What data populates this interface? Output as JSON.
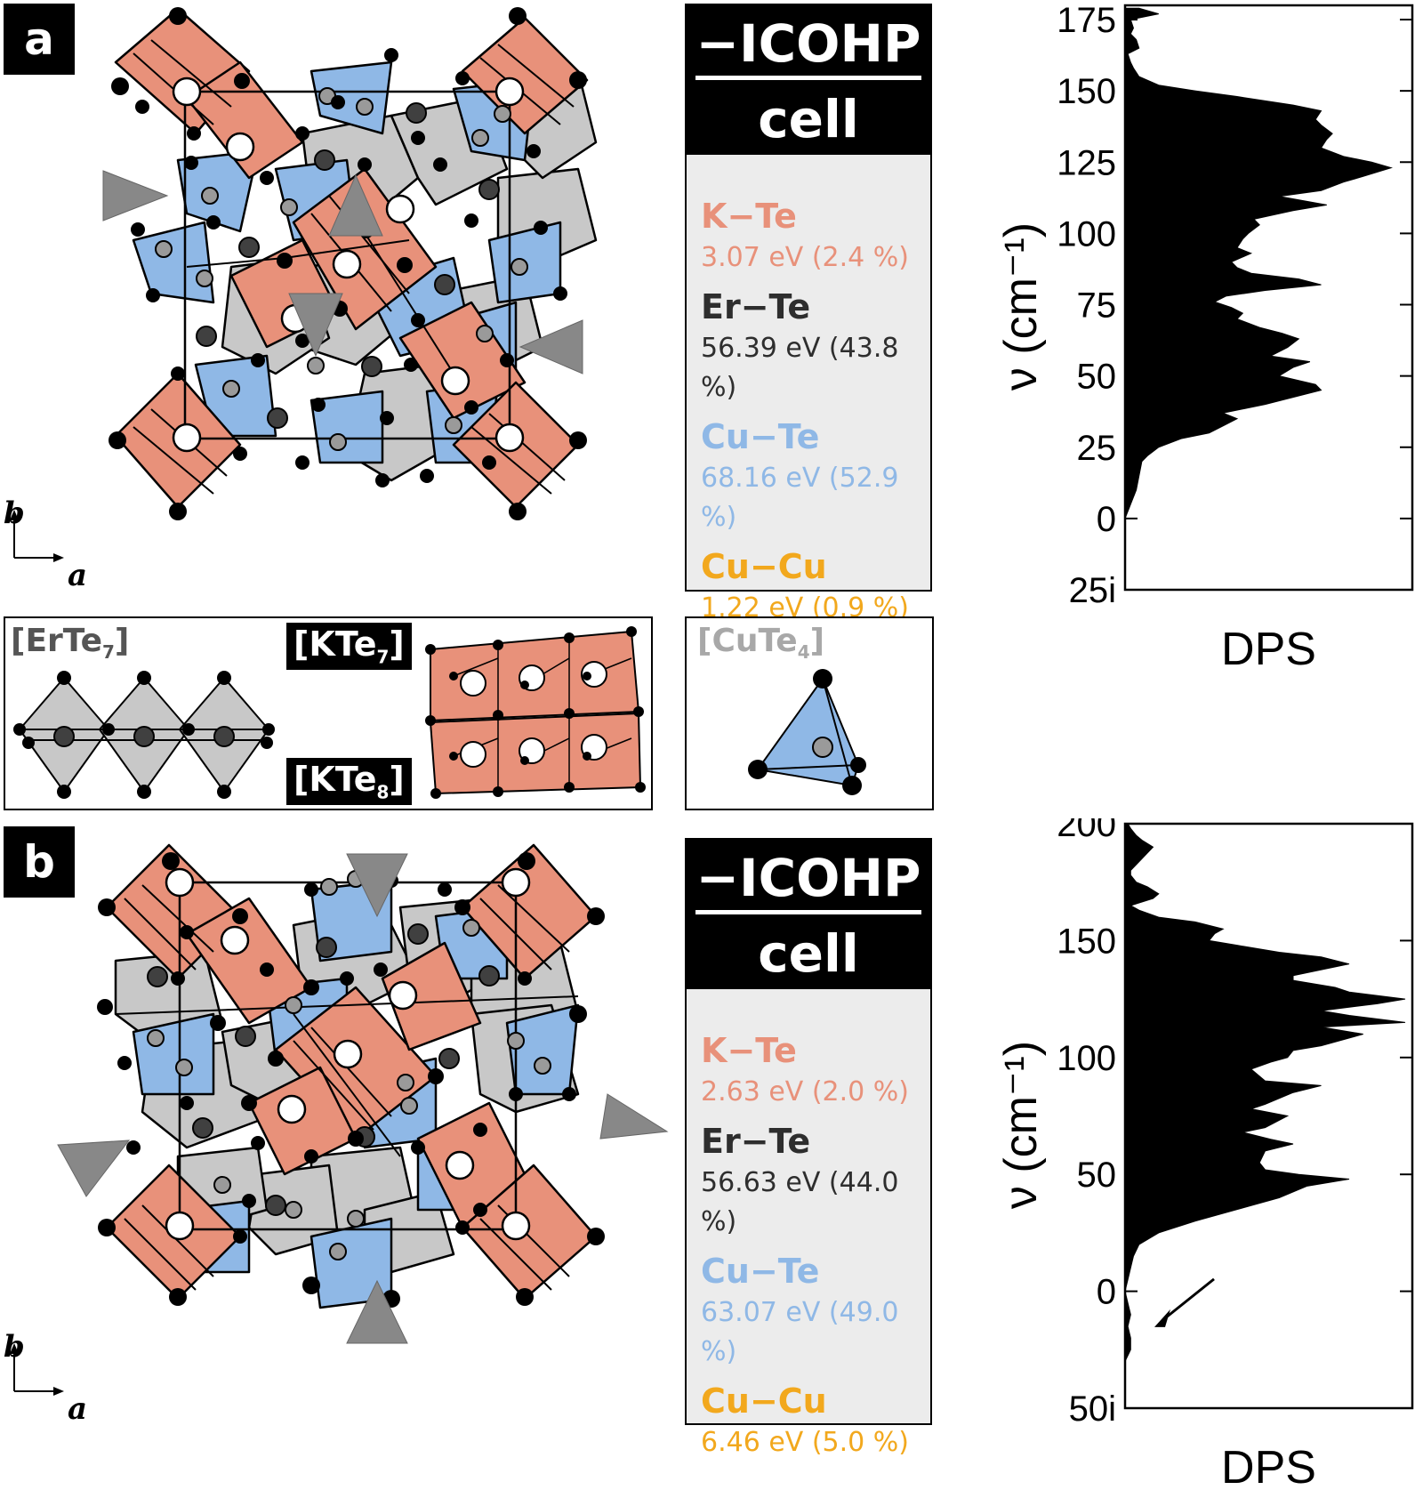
{
  "panels": {
    "a": {
      "letter": "a",
      "icohp_title": "−ICOHP",
      "icohp_sub": "cell",
      "bonds": [
        {
          "name": "K−Te",
          "value": "3.07 eV (2.4 %)",
          "color": "#e8917a"
        },
        {
          "name": "Er−Te",
          "value": "56.39 eV (43.8 %)",
          "color": "#2e2e2e"
        },
        {
          "name": "Cu−Te",
          "value": "68.16 eV (52.9 %)",
          "color": "#8fb8e6"
        },
        {
          "name": "Cu−Cu",
          "value": "1.22 eV (0.9 %)",
          "color": "#f2a81d"
        }
      ],
      "axis_b": "b",
      "axis_a": "a",
      "chart_data": {
        "type": "area",
        "xlabel": "DPS",
        "ylabel": "ν (cm⁻¹)",
        "ylim_label_bottom": "25i",
        "yticks": [
          "175",
          "150",
          "125",
          "100",
          "75",
          "50",
          "25",
          "0"
        ],
        "ytick_values": [
          175,
          150,
          125,
          100,
          75,
          50,
          25,
          0
        ],
        "ylim": [
          -25,
          180
        ],
        "x": [
          -25,
          0,
          5,
          10,
          15,
          20,
          22,
          25,
          28,
          30,
          33,
          35,
          37,
          40,
          43,
          45,
          47,
          50,
          53,
          55,
          57,
          60,
          63,
          65,
          67,
          70,
          72,
          74,
          76,
          78,
          80,
          82,
          84,
          86,
          88,
          90,
          93,
          95,
          98,
          100,
          103,
          105,
          108,
          110,
          113,
          115,
          118,
          120,
          123,
          125,
          127,
          130,
          133,
          135,
          138,
          140,
          143,
          145,
          148,
          150,
          152,
          155,
          158,
          160,
          163,
          165,
          168,
          170,
          172,
          175,
          177,
          179
        ],
        "y": [
          0,
          0,
          0.02,
          0.04,
          0.05,
          0.06,
          0.08,
          0.12,
          0.2,
          0.3,
          0.36,
          0.4,
          0.35,
          0.5,
          0.62,
          0.7,
          0.68,
          0.55,
          0.6,
          0.66,
          0.52,
          0.58,
          0.62,
          0.56,
          0.48,
          0.4,
          0.42,
          0.38,
          0.32,
          0.36,
          0.5,
          0.7,
          0.62,
          0.45,
          0.4,
          0.38,
          0.45,
          0.4,
          0.42,
          0.44,
          0.48,
          0.46,
          0.6,
          0.72,
          0.55,
          0.7,
          0.78,
          0.85,
          0.95,
          0.88,
          0.78,
          0.7,
          0.72,
          0.74,
          0.7,
          0.68,
          0.7,
          0.6,
          0.4,
          0.25,
          0.12,
          0.05,
          0.03,
          0.02,
          0.01,
          0.05,
          0.04,
          0.02,
          0.03,
          0.02,
          0.12,
          0.05
        ]
      }
    },
    "b": {
      "letter": "b",
      "icohp_title": "−ICOHP",
      "icohp_sub": "cell",
      "bonds": [
        {
          "name": "K−Te",
          "value": "2.63 eV (2.0 %)",
          "color": "#e8917a"
        },
        {
          "name": "Er−Te",
          "value": "56.63 eV (44.0 %)",
          "color": "#2e2e2e"
        },
        {
          "name": "Cu−Te",
          "value": "63.07 eV (49.0 %)",
          "color": "#8fb8e6"
        },
        {
          "name": "Cu−Cu",
          "value": "6.46 eV (5.0 %)",
          "color": "#f2a81d"
        }
      ],
      "axis_b": "b",
      "axis_a": "a",
      "chart_data": {
        "type": "area",
        "xlabel": "DPS",
        "ylabel": "ν (cm⁻¹)",
        "ylim_label_bottom": "50i",
        "yticks": [
          "200",
          "150",
          "100",
          "50",
          "0"
        ],
        "ytick_values": [
          200,
          150,
          100,
          50,
          0
        ],
        "ylim": [
          -50,
          200
        ],
        "x": [
          -50,
          -30,
          -25,
          -20,
          -15,
          -10,
          -5,
          0,
          5,
          10,
          15,
          20,
          25,
          30,
          35,
          40,
          45,
          48,
          50,
          52,
          55,
          60,
          63,
          65,
          68,
          70,
          75,
          78,
          80,
          85,
          88,
          90,
          95,
          98,
          100,
          103,
          105,
          110,
          113,
          115,
          118,
          120,
          123,
          125,
          128,
          130,
          133,
          135,
          138,
          140,
          143,
          145,
          148,
          150,
          153,
          155,
          158,
          160,
          163,
          165,
          168,
          170,
          173,
          175,
          178,
          180,
          185,
          190,
          193,
          195,
          198,
          200
        ],
        "y": [
          0,
          0,
          0.02,
          0.02,
          0.01,
          0.02,
          0.01,
          0.0,
          0.01,
          0.02,
          0.03,
          0.05,
          0.12,
          0.25,
          0.4,
          0.55,
          0.65,
          0.8,
          0.62,
          0.5,
          0.48,
          0.5,
          0.6,
          0.52,
          0.42,
          0.5,
          0.58,
          0.45,
          0.5,
          0.6,
          0.7,
          0.5,
          0.45,
          0.52,
          0.58,
          0.6,
          0.7,
          0.85,
          0.7,
          1.0,
          0.8,
          0.7,
          0.9,
          1.0,
          0.8,
          0.75,
          0.6,
          0.6,
          0.72,
          0.8,
          0.7,
          0.55,
          0.4,
          0.3,
          0.32,
          0.35,
          0.25,
          0.12,
          0.05,
          0.02,
          0.1,
          0.12,
          0.08,
          0.04,
          0.02,
          0.02,
          0.06,
          0.1,
          0.06,
          0.04,
          0.02,
          0.01
        ]
      }
    }
  },
  "legend": {
    "erte7": "[ErTe",
    "erte7_sub": "7",
    "kte7": "[KTe",
    "kte7_sub": "7",
    "kte8": "[KTe",
    "kte8_sub": "8",
    "cute4": "[CuTe",
    "cute4_sub": "4",
    "close": "]"
  },
  "colors": {
    "k_poly": "#e8917a",
    "er_poly": "#c8c8c8",
    "cu_poly": "#8fb8e6",
    "te_atom": "#000000",
    "marker": "#888888"
  }
}
